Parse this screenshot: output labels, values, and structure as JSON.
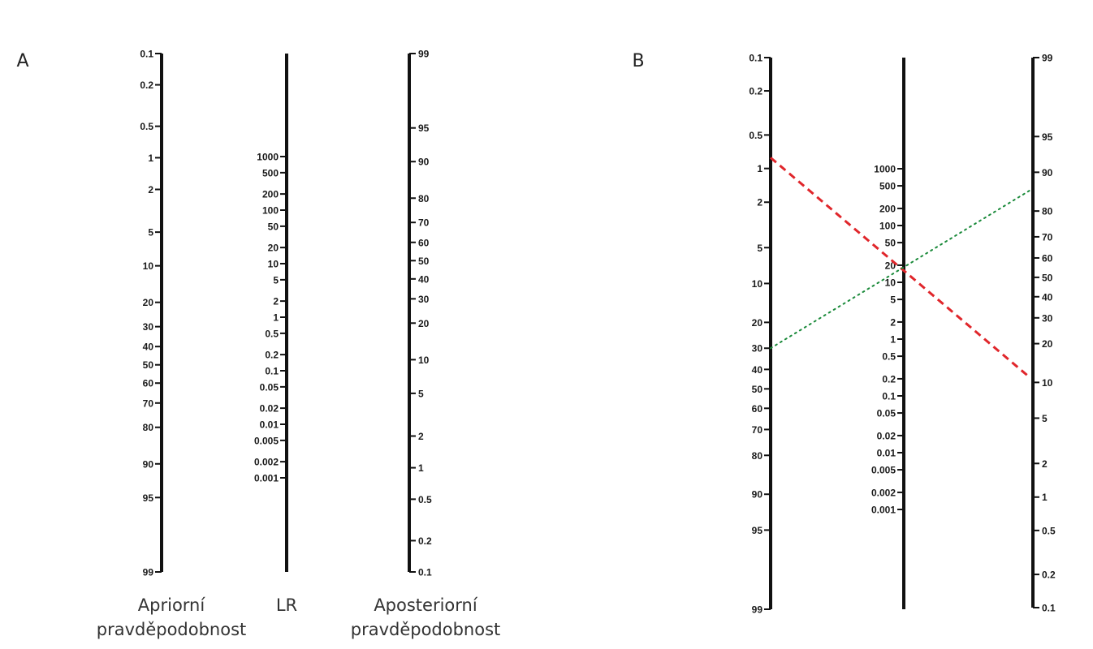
{
  "panels": [
    {
      "letter": "A",
      "captions": {
        "prior": [
          "Apriorní",
          "pravděpodobnost"
        ],
        "lr": [
          "LR"
        ],
        "posterior": [
          "Aposteriorní",
          "pravděpodobnost"
        ]
      },
      "lines": []
    },
    {
      "letter": "B",
      "captions": null,
      "lines": [
        {
          "from_prior": 0.8,
          "to_posterior": 11,
          "style": "dashed",
          "color": "#e0262b"
        },
        {
          "from_prior": 30,
          "to_posterior": 86,
          "style": "dotted",
          "color": "#1a8a3a"
        }
      ]
    }
  ],
  "scales": {
    "prior_ticks": [
      "0.1",
      "0.2",
      "0.5",
      "1",
      "2",
      "5",
      "10",
      "20",
      "30",
      "40",
      "50",
      "60",
      "70",
      "80",
      "90",
      "95",
      "99"
    ],
    "lr_ticks": [
      "1000",
      "500",
      "200",
      "100",
      "50",
      "20",
      "10",
      "5",
      "2",
      "1",
      "0.5",
      "0.2",
      "0.1",
      "0.05",
      "0.02",
      "0.01",
      "0.005",
      "0.002",
      "0.001"
    ],
    "posterior_ticks": [
      "99",
      "95",
      "90",
      "80",
      "70",
      "60",
      "50",
      "40",
      "30",
      "20",
      "10",
      "5",
      "2",
      "1",
      "0.5",
      "0.2",
      "0.1"
    ]
  },
  "colors": {
    "axis": "#111111",
    "text": "#1a1a1a"
  }
}
